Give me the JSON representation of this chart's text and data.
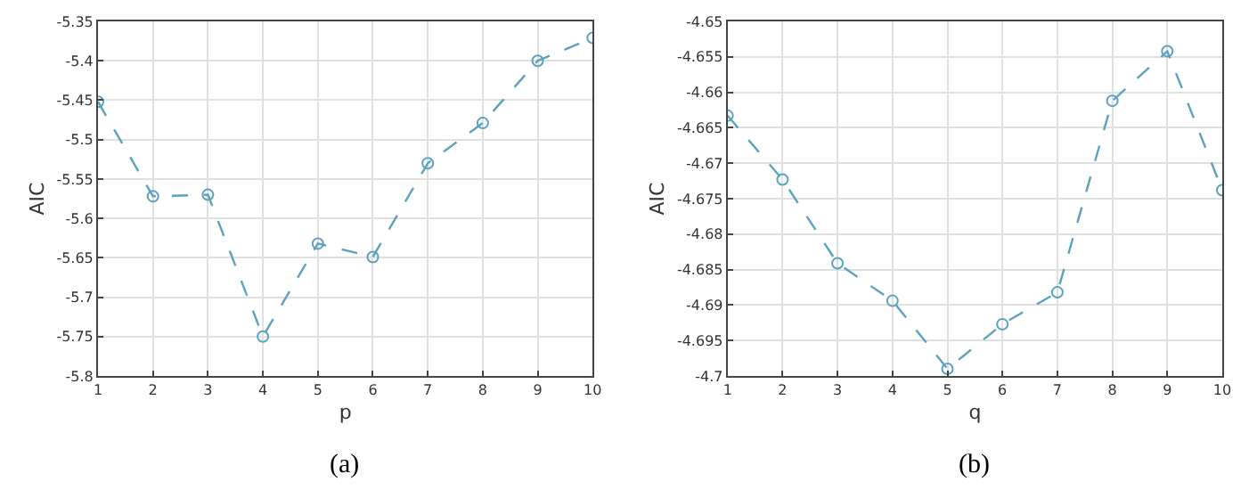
{
  "chart_data": [
    {
      "type": "line",
      "xlabel": "p",
      "ylabel": "AIC",
      "x": [
        1,
        2,
        3,
        4,
        5,
        6,
        7,
        8,
        9,
        10
      ],
      "series": [
        {
          "color": "#5ba3bd",
          "values": [
            -5.452,
            -5.572,
            -5.57,
            -5.75,
            -5.632,
            -5.649,
            -5.53,
            -5.479,
            -5.4,
            -5.371
          ]
        }
      ],
      "xlim": [
        1,
        10
      ],
      "xticks": [
        1,
        2,
        3,
        4,
        5,
        6,
        7,
        8,
        9,
        10
      ],
      "ylim": [
        -5.8,
        -5.35
      ],
      "yticks": [
        -5.8,
        -5.75,
        -5.7,
        -5.65,
        -5.6,
        -5.55,
        -5.5,
        -5.45,
        -5.4,
        -5.35
      ],
      "grid": true,
      "marker": "circle",
      "line_style": "dashed",
      "annotations": [
        "(a)"
      ]
    },
    {
      "type": "line",
      "xlabel": "q",
      "ylabel": "AIC",
      "x": [
        1,
        2,
        3,
        4,
        5,
        6,
        7,
        8,
        9,
        10
      ],
      "series": [
        {
          "color": "#5ba3bd",
          "values": [
            -4.6633,
            -4.6723,
            -4.6841,
            -4.6894,
            -4.699,
            -4.6927,
            -4.6882,
            -4.6612,
            -4.6542,
            -4.6738
          ]
        }
      ],
      "xlim": [
        1,
        10
      ],
      "xticks": [
        1,
        2,
        3,
        4,
        5,
        6,
        7,
        8,
        9,
        10
      ],
      "ylim": [
        -4.7,
        -4.65
      ],
      "yticks": [
        -4.7,
        -4.695,
        -4.69,
        -4.685,
        -4.68,
        -4.675,
        -4.67,
        -4.665,
        -4.66,
        -4.655,
        -4.65
      ],
      "grid": true,
      "marker": "circle",
      "line_style": "dashed",
      "annotations": [
        "(b)"
      ]
    }
  ]
}
